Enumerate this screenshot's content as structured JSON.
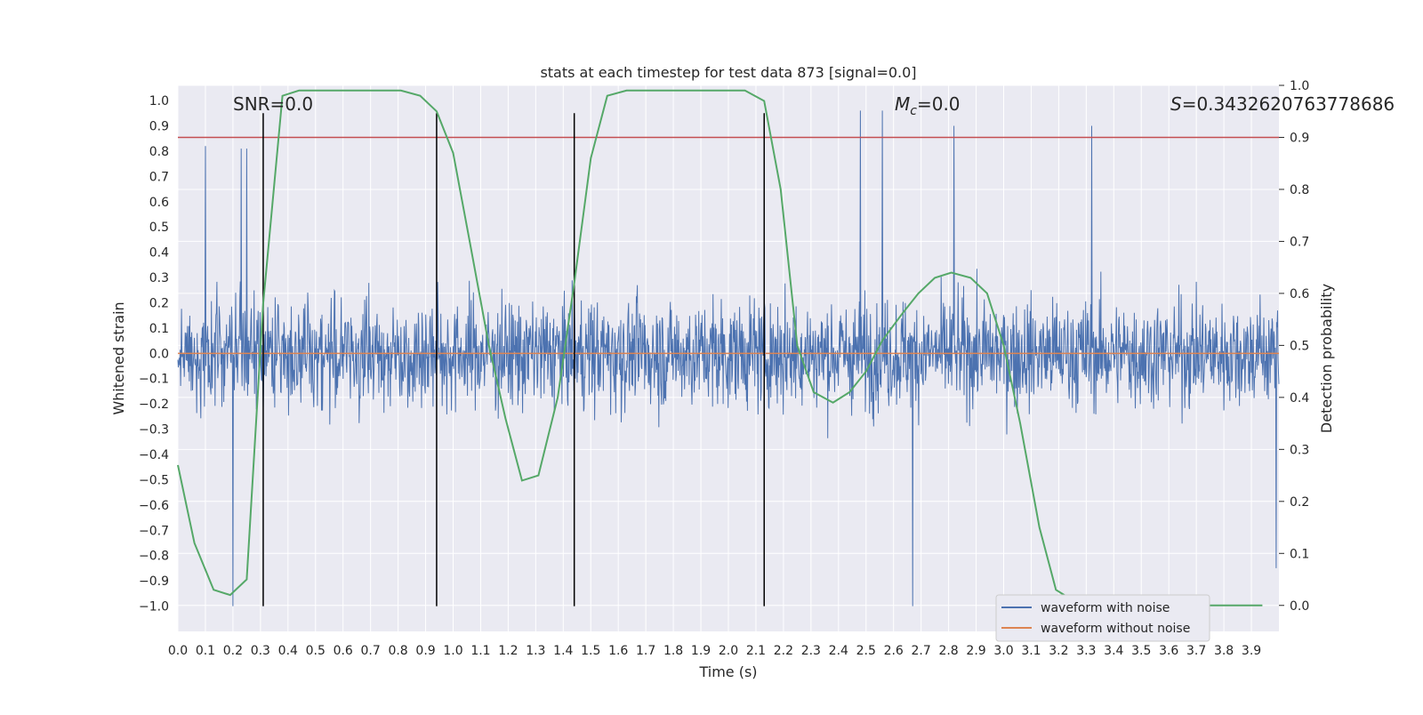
{
  "chart_data": {
    "type": "line",
    "title": "stats at each timestep for test data 873 [signal=0.0]",
    "xlabel": "Time (s)",
    "ylabel_left": "Whitened strain",
    "ylabel_right": "Detection probability",
    "xlim": [
      0.0,
      4.0
    ],
    "ylim_left": [
      -1.1,
      1.06
    ],
    "ylim_right": [
      -0.05,
      1.0
    ],
    "grid": true,
    "x_ticks": [
      "0.0",
      "0.1",
      "0.2",
      "0.3",
      "0.4",
      "0.5",
      "0.6",
      "0.7",
      "0.8",
      "0.9",
      "1.0",
      "1.1",
      "1.2",
      "1.3",
      "1.4",
      "1.5",
      "1.6",
      "1.7",
      "1.8",
      "1.9",
      "2.0",
      "2.1",
      "2.2",
      "2.3",
      "2.4",
      "2.5",
      "2.6",
      "2.7",
      "2.8",
      "2.9",
      "3.0",
      "3.1",
      "3.2",
      "3.3",
      "3.4",
      "3.5",
      "3.6",
      "3.7",
      "3.8",
      "3.9"
    ],
    "y_ticks_left": [
      "1.0",
      "0.9",
      "0.8",
      "0.7",
      "0.6",
      "0.5",
      "0.4",
      "0.3",
      "0.2",
      "0.1",
      "0.0",
      "-0.1",
      "-0.2",
      "-0.3",
      "-0.4",
      "-0.5",
      "-0.6",
      "-0.7",
      "-0.8",
      "-0.9",
      "-1.0"
    ],
    "y_ticks_right": [
      "1.0",
      "0.9",
      "0.8",
      "0.7",
      "0.6",
      "0.5",
      "0.4",
      "0.3",
      "0.2",
      "0.1",
      "0.0"
    ],
    "annotations": {
      "snr": "SNR=0.0",
      "mc_symbol": "M",
      "mc_sub": "c",
      "mc_value": "=0.0",
      "s_symbol": "S",
      "s_value": "=0.3432620763778686"
    },
    "threshold_right": 0.9,
    "threshold_color": "#c44e52",
    "vertical_lines_x": [
      0.31,
      0.94,
      1.44,
      2.13
    ],
    "series": [
      {
        "name": "waveform with noise",
        "color": "#4c72b0",
        "description": "whitened noise, approx. symmetric about 0, envelope roughly +/-0.45 with spikes to ~0.95 and down to ~-1.0",
        "notable_peaks": [
          [
            0.1,
            0.82
          ],
          [
            0.23,
            0.81
          ],
          [
            0.25,
            0.81
          ],
          [
            0.2,
            -1.0
          ],
          [
            2.48,
            0.96
          ],
          [
            2.56,
            0.96
          ],
          [
            2.67,
            -1.0
          ],
          [
            2.82,
            0.9
          ],
          [
            3.32,
            0.9
          ],
          [
            3.99,
            -0.85
          ]
        ]
      },
      {
        "name": "waveform without noise",
        "color": "#dd8452",
        "values_constant": 0.0
      },
      {
        "name": "Detection probability",
        "color": "#55a868",
        "axis": "right",
        "x": [
          0.0,
          0.06,
          0.13,
          0.19,
          0.25,
          0.31,
          0.38,
          0.44,
          0.5,
          0.56,
          0.63,
          0.69,
          0.75,
          0.81,
          0.88,
          0.94,
          1.0,
          1.06,
          1.13,
          1.19,
          1.25,
          1.31,
          1.38,
          1.44,
          1.5,
          1.56,
          1.63,
          1.69,
          1.75,
          1.81,
          1.88,
          1.94,
          2.0,
          2.06,
          2.13,
          2.19,
          2.25,
          2.31,
          2.38,
          2.44,
          2.5,
          2.56,
          2.63,
          2.69,
          2.75,
          2.81,
          2.88,
          2.94,
          3.0,
          3.06,
          3.13,
          3.19,
          3.25,
          3.31,
          3.38,
          3.44,
          3.5,
          3.56,
          3.63,
          3.69,
          3.75,
          3.81,
          3.88,
          3.94
        ],
        "values": [
          0.27,
          0.12,
          0.03,
          0.02,
          0.05,
          0.58,
          0.98,
          0.99,
          0.99,
          0.99,
          0.99,
          0.99,
          0.99,
          0.99,
          0.98,
          0.95,
          0.87,
          0.7,
          0.5,
          0.36,
          0.24,
          0.25,
          0.4,
          0.62,
          0.86,
          0.98,
          0.99,
          0.99,
          0.99,
          0.99,
          0.99,
          0.99,
          0.99,
          0.99,
          0.97,
          0.8,
          0.5,
          0.41,
          0.39,
          0.41,
          0.45,
          0.51,
          0.56,
          0.6,
          0.63,
          0.64,
          0.63,
          0.6,
          0.5,
          0.35,
          0.15,
          0.03,
          0.01,
          0.0,
          0.0,
          0.0,
          0.0,
          0.0,
          0.0,
          0.0,
          0.0,
          0.0,
          0.0,
          0.0
        ]
      }
    ],
    "legend": {
      "position": "lower-right",
      "entries": [
        {
          "label": "waveform with noise",
          "color": "#4c72b0"
        },
        {
          "label": "waveform without noise",
          "color": "#dd8452"
        }
      ]
    }
  }
}
